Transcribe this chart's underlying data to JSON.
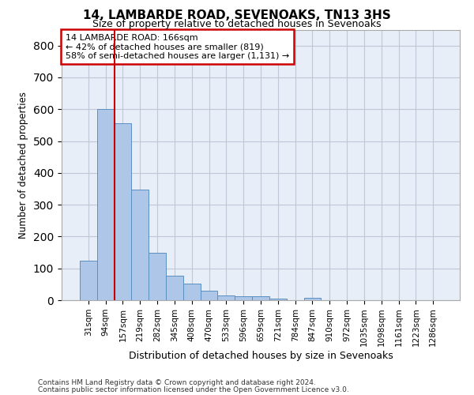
{
  "title": "14, LAMBARDE ROAD, SEVENOAKS, TN13 3HS",
  "subtitle": "Size of property relative to detached houses in Sevenoaks",
  "xlabel": "Distribution of detached houses by size in Sevenoaks",
  "ylabel": "Number of detached properties",
  "categories": [
    "31sqm",
    "94sqm",
    "157sqm",
    "219sqm",
    "282sqm",
    "345sqm",
    "408sqm",
    "470sqm",
    "533sqm",
    "596sqm",
    "659sqm",
    "721sqm",
    "784sqm",
    "847sqm",
    "910sqm",
    "972sqm",
    "1035sqm",
    "1098sqm",
    "1161sqm",
    "1223sqm",
    "1286sqm"
  ],
  "values": [
    125,
    600,
    555,
    347,
    150,
    77,
    52,
    30,
    15,
    13,
    13,
    6,
    0,
    8,
    0,
    0,
    0,
    0,
    0,
    0,
    0
  ],
  "bar_color": "#aec6e8",
  "bar_edge_color": "#5a8fc0",
  "grid_color": "#c0c8d8",
  "background_color": "#e8eef8",
  "vline_x_index": 2,
  "vline_color": "#cc0000",
  "annotation_text": "14 LAMBARDE ROAD: 166sqm\n← 42% of detached houses are smaller (819)\n58% of semi-detached houses are larger (1,131) →",
  "annotation_box_color": "#ffffff",
  "annotation_box_edge_color": "#cc0000",
  "ylim": [
    0,
    850
  ],
  "yticks": [
    0,
    100,
    200,
    300,
    400,
    500,
    600,
    700,
    800
  ],
  "footer1": "Contains HM Land Registry data © Crown copyright and database right 2024.",
  "footer2": "Contains public sector information licensed under the Open Government Licence v3.0."
}
